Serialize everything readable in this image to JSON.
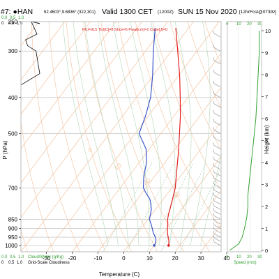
{
  "header": {
    "station": "#7: ●HAN",
    "coords": "52.4603°,9.6836° (322,301)",
    "valid": "Valid 1300 CET",
    "utc": "(1200Z)",
    "date": "SUN 15 Nov 2020",
    "forecast": "[12hrFcst@0739z]",
    "params": "Plcl=915 Tlcl[C]=8 Shox=5 Pwat[cm]=2 Cape[J]=0"
  },
  "scales": {
    "cloudwater_ticks": [
      "0.0",
      "0.5",
      "1.0"
    ],
    "fraction_ticks": [
      "0",
      "0.5",
      "1.0"
    ],
    "wind_ticks": [
      "0",
      "10",
      "20",
      "30"
    ],
    "legend_cloudwater": "Cloud/Water (g/Kg)",
    "legend_cloudiness": "Grid-Scale Cloudiness",
    "speed_label": "Speed (m/s)"
  },
  "colors": {
    "temperature": "#e02020",
    "dewpoint": "#3a55c8",
    "isotherm": "#f5c8a8",
    "dry_adiabat": "#f5c8a8",
    "moist_adiabat": "#bcdcc0",
    "mixing_ratio": "#a8ccb0",
    "wind_speed": "#30a030",
    "frame": "#b9b9b9",
    "cloud": "#000000"
  },
  "chart_data": {
    "type": "line",
    "title": "Valid 1300 CET (1200Z) SUN 15 Nov 2020",
    "xlabel": "Temperature (C)",
    "ylabel": "P (hPa)",
    "y2label": "Height (km)",
    "xlim": [
      -35,
      45
    ],
    "ylim": [
      250,
      1040
    ],
    "x_ticks": [
      -30,
      -20,
      -10,
      0,
      10,
      20,
      30,
      40
    ],
    "y_ticks": [
      250,
      300,
      400,
      500,
      700,
      850,
      900,
      950,
      1000
    ],
    "height_ticks": [
      0,
      1,
      2,
      3,
      4,
      5,
      6,
      7,
      8,
      9,
      10
    ],
    "theta_labels": [
      0,
      10,
      20,
      30
    ],
    "series": [
      {
        "name": "Temperature",
        "unit": "C",
        "p": [
          1000,
          985,
          965,
          950,
          925,
          900,
          875,
          850,
          825,
          800,
          775,
          750,
          725,
          700,
          650,
          600,
          550,
          500,
          450,
          400,
          350,
          300,
          260
        ],
        "values": [
          15.6,
          15.0,
          14.0,
          13.0,
          11.5,
          10.2,
          9.0,
          7.6,
          6.5,
          5.6,
          4.6,
          3.6,
          2.5,
          1.4,
          -1.7,
          -5.0,
          -8.6,
          -12.8,
          -17.4,
          -23.0,
          -29.5,
          -37.5,
          -45.0
        ]
      },
      {
        "name": "Dew Point",
        "unit": "C",
        "p": [
          1000,
          985,
          965,
          950,
          925,
          900,
          875,
          850,
          825,
          800,
          775,
          750,
          725,
          700,
          650,
          600,
          550,
          500,
          450,
          400,
          350,
          300,
          260
        ],
        "values": [
          10.0,
          9.8,
          9.0,
          8.0,
          6.0,
          4.3,
          2.5,
          0.5,
          -0.5,
          -1.6,
          -3.3,
          -5.2,
          -8.2,
          -11.0,
          -14.3,
          -17.0,
          -21.3,
          -28.5,
          -31.0,
          -34.5,
          -40.0,
          -47.0,
          -53.0
        ]
      },
      {
        "name": "Wind Speed",
        "unit": "m/s",
        "height_km": [
          0,
          0.3,
          0.6,
          1.0,
          1.5,
          2.0,
          2.5,
          3.0,
          3.5,
          4.0,
          5.0,
          6.0,
          7.0,
          8.0,
          9.0,
          10.0
        ],
        "values": [
          2,
          10,
          13,
          15,
          17,
          18,
          18,
          19,
          20,
          21,
          23,
          25,
          26,
          27,
          28,
          28
        ]
      },
      {
        "name": "Grid-Scale Cloudiness",
        "unit": "fraction",
        "p": [
          370,
          345,
          300,
          290,
          280,
          270,
          250,
          253
        ],
        "values": [
          0.0,
          1.0,
          0.8,
          0.35,
          0.25,
          0.85,
          0.55,
          1.0
        ]
      }
    ]
  }
}
